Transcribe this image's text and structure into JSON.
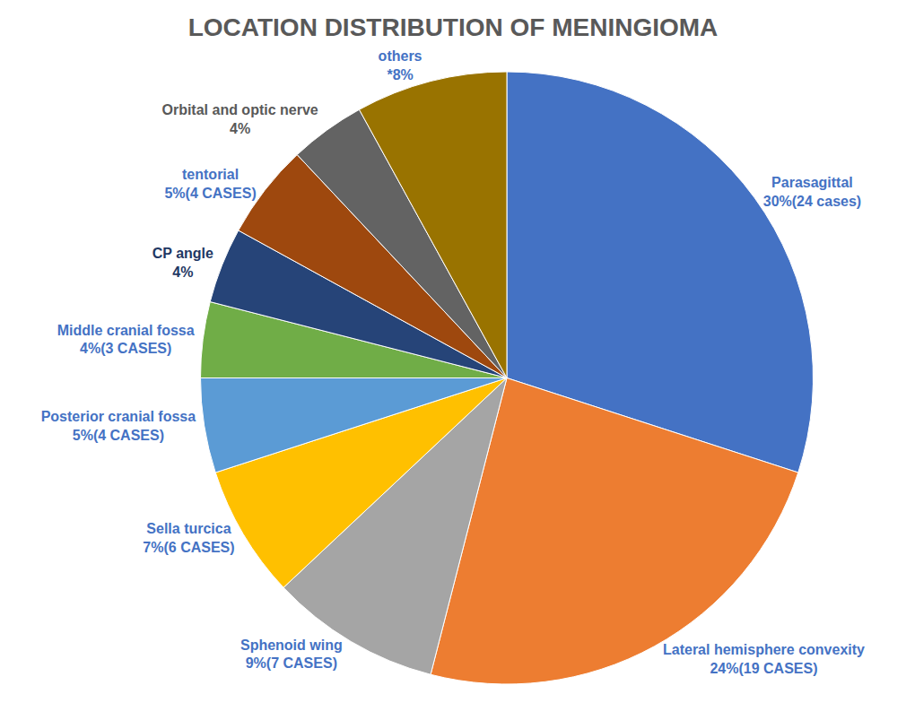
{
  "chart_data": {
    "type": "pie",
    "title": "LOCATION DISTRIBUTION OF MENINGIOMA",
    "categories": [
      "Parasagittal",
      "Lateral hemisphere convexity",
      "Sphenoid wing",
      "Sella turcica",
      "Posterior cranial fossa",
      "Middle cranial fossa",
      "CP angle",
      "tentorial",
      "Orbital and optic nerve",
      "others"
    ],
    "values": [
      30,
      24,
      9,
      7,
      5,
      4,
      4,
      5,
      4,
      8
    ],
    "value_labels": [
      "30%(24 cases)",
      "24%(19 CASES)",
      "9%(7 CASES)",
      "7%(6 CASES)",
      "5%(4 CASES)",
      "4%(3 CASES)",
      "4%",
      "5%(4 CASES)",
      "4%",
      "*8%"
    ],
    "colors": [
      "#4472c4",
      "#ed7d31",
      "#a5a5a5",
      "#ffc000",
      "#5b9bd5",
      "#70ad47",
      "#264478",
      "#9e480e",
      "#636363",
      "#997300"
    ],
    "data_labels": true
  }
}
